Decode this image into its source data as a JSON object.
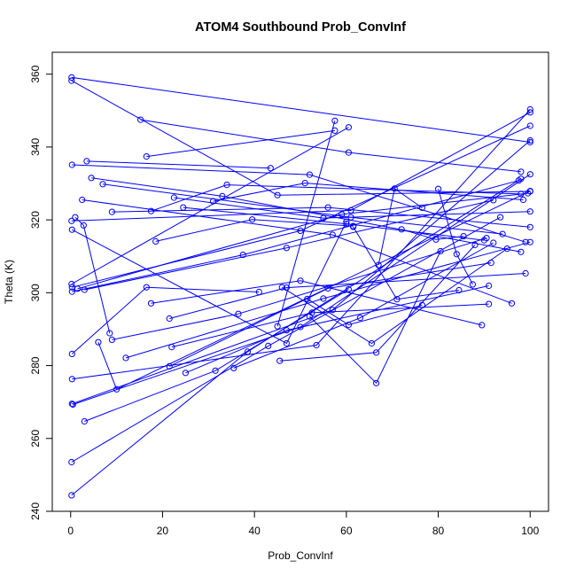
{
  "chart_data": {
    "type": "line",
    "title": "ATOM4 Southbound Prob_ConvInf",
    "xlabel": "Prob_ConvInf",
    "ylabel": "Theta (K)",
    "xlim": [
      -4,
      104
    ],
    "ylim": [
      240,
      366
    ],
    "xticks": [
      0,
      20,
      40,
      60,
      80,
      100
    ],
    "yticks": [
      240,
      260,
      280,
      300,
      320,
      340,
      360
    ],
    "grid": false,
    "legend": "none",
    "marker": "open-circle",
    "color": "#0000ff",
    "points": [
      {
        "x": 0.2,
        "y": 359.1
      },
      {
        "x": 100,
        "y": 341.3
      },
      {
        "x": 0.2,
        "y": 358.2
      },
      {
        "x": 45,
        "y": 326.8
      },
      {
        "x": 100,
        "y": 327.8
      },
      {
        "x": 0.3,
        "y": 335.1
      },
      {
        "x": 52,
        "y": 332.4
      },
      {
        "x": 99,
        "y": 313.9
      },
      {
        "x": 3.5,
        "y": 336.1
      },
      {
        "x": 43.5,
        "y": 334.2
      },
      {
        "x": 4.5,
        "y": 331.5
      },
      {
        "x": 33,
        "y": 326.5
      },
      {
        "x": 98,
        "y": 311.2
      },
      {
        "x": 15.2,
        "y": 347.5
      },
      {
        "x": 60.5,
        "y": 338.5
      },
      {
        "x": 98,
        "y": 333.2
      },
      {
        "x": 16.5,
        "y": 337.4
      },
      {
        "x": 57.5,
        "y": 344.5
      },
      {
        "x": 17.5,
        "y": 322.4
      },
      {
        "x": 34,
        "y": 329.6
      },
      {
        "x": 98,
        "y": 327.1
      },
      {
        "x": 22.5,
        "y": 326.1
      },
      {
        "x": 55,
        "y": 320.5
      },
      {
        "x": 100,
        "y": 322.3
      },
      {
        "x": 31,
        "y": 325.1
      },
      {
        "x": 51,
        "y": 330.1
      },
      {
        "x": 98.5,
        "y": 325.5
      },
      {
        "x": 57.5,
        "y": 347.2
      },
      {
        "x": 45,
        "y": 290.8
      },
      {
        "x": 60.5,
        "y": 345.4
      },
      {
        "x": 0.2,
        "y": 302.4
      },
      {
        "x": 2.5,
        "y": 325.5
      },
      {
        "x": 57,
        "y": 315.9
      },
      {
        "x": 96,
        "y": 297.1
      },
      {
        "x": 7,
        "y": 329.8
      },
      {
        "x": 61,
        "y": 320.7
      },
      {
        "x": 94,
        "y": 316.1
      },
      {
        "x": 9,
        "y": 322.2
      },
      {
        "x": 56,
        "y": 323.4
      },
      {
        "x": 100,
        "y": 318.0
      },
      {
        "x": 24.5,
        "y": 323.4
      },
      {
        "x": 60,
        "y": 318.9
      },
      {
        "x": 90,
        "y": 314.4
      },
      {
        "x": 18.5,
        "y": 314.1
      },
      {
        "x": 39.5,
        "y": 320.1
      },
      {
        "x": 61.5,
        "y": 318.3
      },
      {
        "x": 0.2,
        "y": 319.7
      },
      {
        "x": 61,
        "y": 322.6
      },
      {
        "x": 100,
        "y": 349.5
      },
      {
        "x": 0.3,
        "y": 317.3
      },
      {
        "x": 47,
        "y": 286.1
      },
      {
        "x": 60,
        "y": 319.5
      },
      {
        "x": 1,
        "y": 320.7
      },
      {
        "x": 2.8,
        "y": 318.5
      },
      {
        "x": 8.5,
        "y": 288.9
      },
      {
        "x": 0.3,
        "y": 300.3
      },
      {
        "x": 37.5,
        "y": 310.4
      },
      {
        "x": 97.5,
        "y": 330.8
      },
      {
        "x": 0.3,
        "y": 301.5
      },
      {
        "x": 50,
        "y": 317.0
      },
      {
        "x": 100,
        "y": 345.8
      },
      {
        "x": 1.5,
        "y": 301.1
      },
      {
        "x": 59,
        "y": 321.5
      },
      {
        "x": 99.5,
        "y": 327.3
      },
      {
        "x": 3,
        "y": 300.8
      },
      {
        "x": 47,
        "y": 312.3
      },
      {
        "x": 92,
        "y": 325.4
      },
      {
        "x": 0.3,
        "y": 283.2
      },
      {
        "x": 16.5,
        "y": 301.5
      },
      {
        "x": 41,
        "y": 300.2
      },
      {
        "x": 0.3,
        "y": 276.3
      },
      {
        "x": 53.5,
        "y": 285.6
      },
      {
        "x": 100,
        "y": 350.3
      },
      {
        "x": 0.3,
        "y": 269.5
      },
      {
        "x": 57,
        "y": 295.3
      },
      {
        "x": 100,
        "y": 341.8
      },
      {
        "x": 0.5,
        "y": 269.3
      },
      {
        "x": 50,
        "y": 290.6
      },
      {
        "x": 100,
        "y": 332.5
      },
      {
        "x": 3,
        "y": 264.7
      },
      {
        "x": 31.5,
        "y": 278.6
      },
      {
        "x": 60.5,
        "y": 300.9
      },
      {
        "x": 0.2,
        "y": 253.5
      },
      {
        "x": 43,
        "y": 285.4
      },
      {
        "x": 93.5,
        "y": 320.7
      },
      {
        "x": 0.2,
        "y": 244.4
      },
      {
        "x": 38.5,
        "y": 283.8
      },
      {
        "x": 98,
        "y": 331.3
      },
      {
        "x": 6,
        "y": 286.4
      },
      {
        "x": 10,
        "y": 273.5
      },
      {
        "x": 100,
        "y": 327.9
      },
      {
        "x": 9,
        "y": 287.1
      },
      {
        "x": 36.5,
        "y": 294.2
      },
      {
        "x": 90.5,
        "y": 315.0
      },
      {
        "x": 12,
        "y": 282.1
      },
      {
        "x": 55,
        "y": 298.4
      },
      {
        "x": 100,
        "y": 313.9
      },
      {
        "x": 17.5,
        "y": 297.1
      },
      {
        "x": 50,
        "y": 303.3
      },
      {
        "x": 89.5,
        "y": 291.1
      },
      {
        "x": 21.5,
        "y": 292.9
      },
      {
        "x": 47,
        "y": 301.4
      },
      {
        "x": 99,
        "y": 305.3
      },
      {
        "x": 21.5,
        "y": 279.8
      },
      {
        "x": 56,
        "y": 301.2
      },
      {
        "x": 91.5,
        "y": 308.2
      },
      {
        "x": 22,
        "y": 285.1
      },
      {
        "x": 52.5,
        "y": 294.5
      },
      {
        "x": 91,
        "y": 296.9
      },
      {
        "x": 25,
        "y": 278.0
      },
      {
        "x": 47,
        "y": 289.7
      },
      {
        "x": 91,
        "y": 301.9
      },
      {
        "x": 35.5,
        "y": 279.3
      },
      {
        "x": 63,
        "y": 293.1
      },
      {
        "x": 92,
        "y": 313.7
      },
      {
        "x": 45.5,
        "y": 281.3
      },
      {
        "x": 66.5,
        "y": 283.6
      },
      {
        "x": 88,
        "y": 313.1
      },
      {
        "x": 46,
        "y": 301.5
      },
      {
        "x": 65.5,
        "y": 286.1
      },
      {
        "x": 95,
        "y": 312.1
      },
      {
        "x": 52,
        "y": 293.5
      },
      {
        "x": 66.5,
        "y": 275.2
      },
      {
        "x": 80.5,
        "y": 311.4
      },
      {
        "x": 51.5,
        "y": 298.3
      },
      {
        "x": 60.5,
        "y": 291.2
      },
      {
        "x": 76.5,
        "y": 296.6
      },
      {
        "x": 61.5,
        "y": 318.1
      },
      {
        "x": 71,
        "y": 298.2
      },
      {
        "x": 84.5,
        "y": 300.7
      },
      {
        "x": 67,
        "y": 307.6
      },
      {
        "x": 70.5,
        "y": 328.6
      },
      {
        "x": 76.5,
        "y": 323.3
      },
      {
        "x": 72,
        "y": 317.4
      },
      {
        "x": 79.5,
        "y": 314.6
      },
      {
        "x": 85.5,
        "y": 315.5
      },
      {
        "x": 80,
        "y": 328.5
      },
      {
        "x": 84,
        "y": 310.6
      },
      {
        "x": 87.5,
        "y": 302.3
      }
    ],
    "series": [
      {
        "x": [
          0.2,
          100
        ],
        "y": [
          359.1,
          341.3
        ]
      },
      {
        "x": [
          0.2,
          45,
          100
        ],
        "y": [
          358.2,
          326.8,
          327.8
        ]
      },
      {
        "x": [
          0.3,
          52,
          99
        ],
        "y": [
          335.1,
          332.4,
          313.9
        ]
      },
      {
        "x": [
          3.5,
          43.5
        ],
        "y": [
          336.1,
          334.2
        ]
      },
      {
        "x": [
          4.5,
          33,
          98
        ],
        "y": [
          331.5,
          326.5,
          311.2
        ]
      },
      {
        "x": [
          15.2,
          60.5,
          98
        ],
        "y": [
          347.5,
          338.5,
          333.2
        ]
      },
      {
        "x": [
          16.5,
          57.5
        ],
        "y": [
          337.4,
          344.5
        ]
      },
      {
        "x": [
          17.5,
          34,
          98
        ],
        "y": [
          322.4,
          329.6,
          327.1
        ]
      },
      {
        "x": [
          22.5,
          55,
          100
        ],
        "y": [
          326.1,
          320.5,
          322.3
        ]
      },
      {
        "x": [
          31,
          51,
          98.5
        ],
        "y": [
          325.1,
          330.1,
          325.5
        ]
      },
      {
        "x": [
          57.5,
          45
        ],
        "y": [
          347.2,
          290.8
        ]
      },
      {
        "x": [
          60.5,
          0.2
        ],
        "y": [
          345.4,
          302.4
        ]
      },
      {
        "x": [
          2.5,
          57,
          96
        ],
        "y": [
          325.5,
          315.9,
          297.1
        ]
      },
      {
        "x": [
          7,
          61,
          94
        ],
        "y": [
          329.8,
          320.7,
          316.1
        ]
      },
      {
        "x": [
          9,
          56,
          100
        ],
        "y": [
          322.2,
          323.4,
          318.0
        ]
      },
      {
        "x": [
          24.5,
          60,
          90
        ],
        "y": [
          323.4,
          318.9,
          314.4
        ]
      },
      {
        "x": [
          18.5,
          39.5,
          61.5
        ],
        "y": [
          314.1,
          320.1,
          318.3
        ]
      },
      {
        "x": [
          0.2,
          61,
          100
        ],
        "y": [
          319.7,
          322.6,
          349.5
        ]
      },
      {
        "x": [
          0.3,
          47,
          60
        ],
        "y": [
          317.3,
          286.1,
          319.5
        ]
      },
      {
        "x": [
          1,
          2.8,
          8.5
        ],
        "y": [
          320.7,
          318.5,
          288.9
        ]
      },
      {
        "x": [
          0.3,
          37.5,
          97.5
        ],
        "y": [
          300.3,
          310.4,
          330.8
        ]
      },
      {
        "x": [
          0.3,
          50,
          100
        ],
        "y": [
          301.5,
          317.0,
          345.8
        ]
      },
      {
        "x": [
          1.5,
          59,
          99.5
        ],
        "y": [
          301.1,
          321.5,
          327.3
        ]
      },
      {
        "x": [
          3,
          47,
          92
        ],
        "y": [
          300.8,
          312.3,
          325.4
        ]
      },
      {
        "x": [
          0.3,
          16.5,
          41
        ],
        "y": [
          283.2,
          301.5,
          300.2
        ]
      },
      {
        "x": [
          0.3,
          53.5,
          100
        ],
        "y": [
          276.3,
          285.6,
          350.3
        ]
      },
      {
        "x": [
          0.3,
          57,
          100
        ],
        "y": [
          269.5,
          295.3,
          341.8
        ]
      },
      {
        "x": [
          0.5,
          50,
          100
        ],
        "y": [
          269.3,
          290.6,
          332.5
        ]
      },
      {
        "x": [
          3,
          31.5,
          60.5
        ],
        "y": [
          264.7,
          278.6,
          300.9
        ]
      },
      {
        "x": [
          0.2,
          43,
          93.5
        ],
        "y": [
          253.5,
          285.4,
          320.7
        ]
      },
      {
        "x": [
          0.2,
          38.5,
          98
        ],
        "y": [
          244.4,
          283.8,
          331.3
        ]
      },
      {
        "x": [
          6,
          10,
          100
        ],
        "y": [
          286.4,
          273.5,
          327.9
        ]
      },
      {
        "x": [
          9,
          36.5,
          90.5
        ],
        "y": [
          287.1,
          294.2,
          315.0
        ]
      },
      {
        "x": [
          12,
          55,
          100
        ],
        "y": [
          282.1,
          298.4,
          313.9
        ]
      },
      {
        "x": [
          17.5,
          50,
          89.5
        ],
        "y": [
          297.1,
          303.3,
          291.1
        ]
      },
      {
        "x": [
          21.5,
          47,
          99
        ],
        "y": [
          292.9,
          301.4,
          305.3
        ]
      },
      {
        "x": [
          21.5,
          56,
          91.5
        ],
        "y": [
          279.8,
          301.2,
          308.2
        ]
      },
      {
        "x": [
          22,
          52.5,
          91
        ],
        "y": [
          285.1,
          294.5,
          296.9
        ]
      },
      {
        "x": [
          25,
          47,
          91
        ],
        "y": [
          278.0,
          289.7,
          301.9
        ]
      },
      {
        "x": [
          35.5,
          63,
          92
        ],
        "y": [
          279.3,
          293.1,
          313.7
        ]
      },
      {
        "x": [
          45.5,
          66.5,
          88
        ],
        "y": [
          281.3,
          283.6,
          313.1
        ]
      },
      {
        "x": [
          46,
          65.5,
          95
        ],
        "y": [
          301.5,
          286.1,
          312.1
        ]
      },
      {
        "x": [
          52,
          66.5,
          80.5
        ],
        "y": [
          293.5,
          275.2,
          311.4
        ]
      },
      {
        "x": [
          51.5,
          60.5,
          76.5
        ],
        "y": [
          298.3,
          291.2,
          296.6
        ]
      },
      {
        "x": [
          61.5,
          71,
          84.5
        ],
        "y": [
          318.1,
          298.2,
          300.7
        ]
      },
      {
        "x": [
          67,
          70.5,
          76.5
        ],
        "y": [
          307.6,
          328.6,
          323.3
        ]
      },
      {
        "x": [
          72,
          79.5,
          85.5
        ],
        "y": [
          317.4,
          314.6,
          315.5
        ]
      },
      {
        "x": [
          80,
          84,
          87.5
        ],
        "y": [
          328.5,
          310.6,
          302.3
        ]
      }
    ]
  }
}
